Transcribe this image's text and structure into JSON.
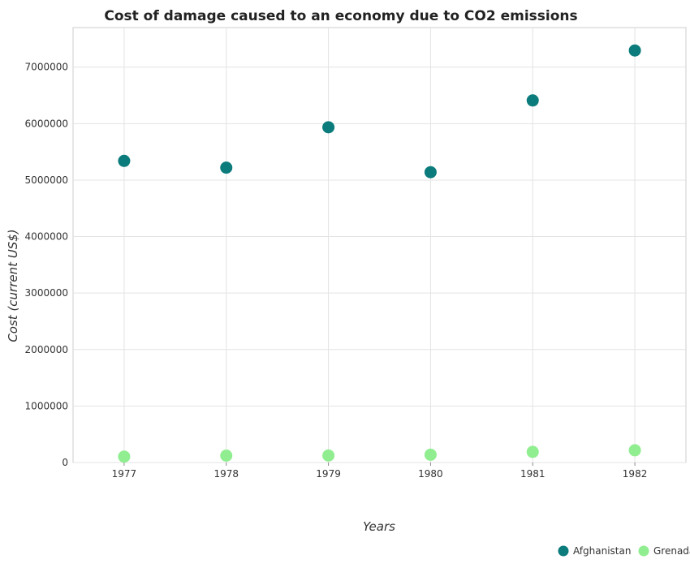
{
  "chart_data": {
    "type": "scatter",
    "title": "Cost of damage caused to an economy due to CO2 emissions",
    "xlabel": "Years",
    "ylabel": "Cost (current US$)",
    "categories": [
      "1977",
      "1978",
      "1979",
      "1980",
      "1981",
      "1982"
    ],
    "ylim": [
      0,
      7700000
    ],
    "yticks": [
      0,
      1000000,
      2000000,
      3000000,
      4000000,
      5000000,
      6000000,
      7000000
    ],
    "ytick_labels": [
      "0",
      "1000000",
      "2000000",
      "3000000",
      "4000000",
      "5000000",
      "6000000",
      "7000000"
    ],
    "grid": true,
    "legend_position": "bottom-right",
    "series": [
      {
        "name": "Afghanistan",
        "color": "#0b7b7b",
        "values": [
          5340000,
          5220000,
          5935000,
          5140000,
          6410000,
          7295000
        ]
      },
      {
        "name": "Grenada",
        "color": "#90ee90",
        "values": [
          105000,
          122000,
          124000,
          138000,
          188000,
          217000
        ]
      }
    ]
  }
}
